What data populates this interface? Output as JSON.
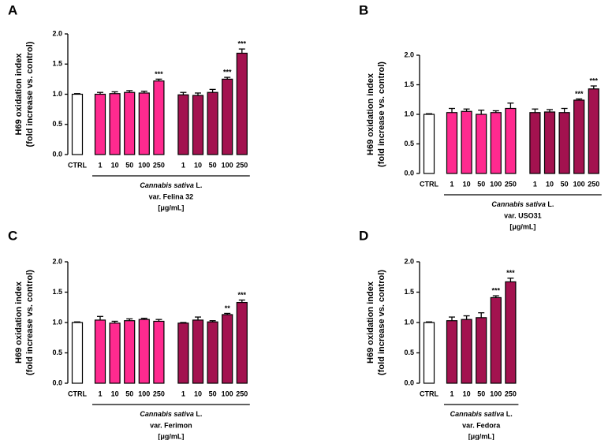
{
  "chart_data": [
    {
      "type": "bar",
      "panel": "A",
      "ylabel": [
        "H69 oxidation index",
        "(fold increase vs. control)"
      ],
      "categories": [
        "CTRL",
        "1",
        "10",
        "50",
        "100",
        "250",
        "1",
        "10",
        "50",
        "100",
        "250"
      ],
      "values": [
        1.0,
        1.0,
        1.01,
        1.03,
        1.02,
        1.22,
        0.99,
        0.98,
        1.03,
        1.25,
        1.68
      ],
      "errors": [
        0.01,
        0.03,
        0.03,
        0.03,
        0.03,
        0.03,
        0.04,
        0.04,
        0.05,
        0.03,
        0.07
      ],
      "annotations": [
        null,
        null,
        null,
        null,
        null,
        "***",
        null,
        null,
        null,
        "***",
        "***"
      ],
      "colors": [
        "#ffffff",
        "#ff2a8f",
        "#ff2a8f",
        "#ff2a8f",
        "#ff2a8f",
        "#ff2a8f",
        "#a3124f",
        "#a3124f",
        "#a3124f",
        "#a3124f",
        "#a3124f"
      ],
      "caption": {
        "species": "Cannabis sativa",
        "author": "L.",
        "variety": "var. Felina 32",
        "unit": "[μg/mL]"
      },
      "ylim": [
        0,
        2
      ],
      "yticks": [
        {
          "value": 0,
          "label": "0.0"
        },
        0.5,
        {
          "value": 1,
          "label": "1.0"
        },
        1.5,
        {
          "value": 2,
          "label": "2.0"
        }
      ]
    },
    {
      "type": "bar",
      "panel": "B",
      "ylabel": [
        "H69 oxidation index",
        "(fold increase vs. control)"
      ],
      "categories": [
        "CTRL",
        "1",
        "10",
        "50",
        "100",
        "250",
        "1",
        "10",
        "50",
        "100",
        "250"
      ],
      "values": [
        1.0,
        1.03,
        1.05,
        1.0,
        1.03,
        1.1,
        1.03,
        1.04,
        1.03,
        1.24,
        1.43
      ],
      "errors": [
        0.01,
        0.07,
        0.04,
        0.07,
        0.03,
        0.09,
        0.06,
        0.04,
        0.07,
        0.02,
        0.05
      ],
      "annotations": [
        null,
        null,
        null,
        null,
        null,
        null,
        null,
        null,
        null,
        "***",
        "***"
      ],
      "colors": [
        "#ffffff",
        "#ff2a8f",
        "#ff2a8f",
        "#ff2a8f",
        "#ff2a8f",
        "#ff2a8f",
        "#a3124f",
        "#a3124f",
        "#a3124f",
        "#a3124f",
        "#a3124f"
      ],
      "caption": {
        "species": "Cannabis sativa",
        "author": "L.",
        "variety": "var. USO31",
        "unit": "[μg/mL]"
      },
      "ylim": [
        0,
        2
      ],
      "yticks": [
        {
          "value": 0,
          "label": "0.0"
        },
        0.5,
        {
          "value": 1,
          "label": "1.0"
        },
        1.5,
        {
          "value": 2,
          "label": "2.0"
        }
      ]
    },
    {
      "type": "bar",
      "panel": "C",
      "ylabel": [
        "H69 oxidation index",
        "(fold increase vs. control)"
      ],
      "categories": [
        "CTRL",
        "1",
        "10",
        "50",
        "100",
        "250",
        "1",
        "10",
        "50",
        "100",
        "250"
      ],
      "values": [
        1.0,
        1.04,
        0.99,
        1.03,
        1.05,
        1.02,
        0.99,
        1.04,
        1.01,
        1.13,
        1.33
      ],
      "errors": [
        0.01,
        0.06,
        0.03,
        0.03,
        0.02,
        0.03,
        0.01,
        0.05,
        0.02,
        0.02,
        0.04
      ],
      "annotations": [
        null,
        null,
        null,
        null,
        null,
        null,
        null,
        null,
        null,
        "**",
        "***"
      ],
      "colors": [
        "#ffffff",
        "#ff2a8f",
        "#ff2a8f",
        "#ff2a8f",
        "#ff2a8f",
        "#ff2a8f",
        "#a3124f",
        "#a3124f",
        "#a3124f",
        "#a3124f",
        "#a3124f"
      ],
      "caption": {
        "species": "Cannabis sativa",
        "author": "L.",
        "variety": "var. Ferimon",
        "unit": "[μg/mL]"
      },
      "ylim": [
        0,
        2
      ],
      "yticks": [
        {
          "value": 0,
          "label": "0.0"
        },
        0.5,
        {
          "value": 1,
          "label": "1.0"
        },
        1.5,
        {
          "value": 2,
          "label": "2.0"
        }
      ]
    },
    {
      "type": "bar",
      "panel": "D",
      "ylabel": [
        "H69 oxidation index",
        "(fold increase vs. control)"
      ],
      "categories": [
        "CTRL",
        "1",
        "10",
        "50",
        "100",
        "250"
      ],
      "values": [
        1.0,
        1.03,
        1.05,
        1.08,
        1.41,
        1.67
      ],
      "errors": [
        0.01,
        0.06,
        0.06,
        0.08,
        0.03,
        0.06
      ],
      "annotations": [
        null,
        null,
        null,
        null,
        "***",
        "***"
      ],
      "colors": [
        "#ffffff",
        "#a3124f",
        "#a3124f",
        "#a3124f",
        "#a3124f",
        "#a3124f"
      ],
      "caption": {
        "species": "Cannabis sativa",
        "author": "L.",
        "variety": "var. Fedora",
        "unit": "[μg/mL]"
      },
      "ylim": [
        0,
        2
      ],
      "yticks": [
        {
          "value": 0,
          "label": "0.0"
        },
        0.5,
        {
          "value": 1,
          "label": "1.0"
        },
        1.5,
        {
          "value": 2,
          "label": "2.0"
        }
      ]
    }
  ]
}
